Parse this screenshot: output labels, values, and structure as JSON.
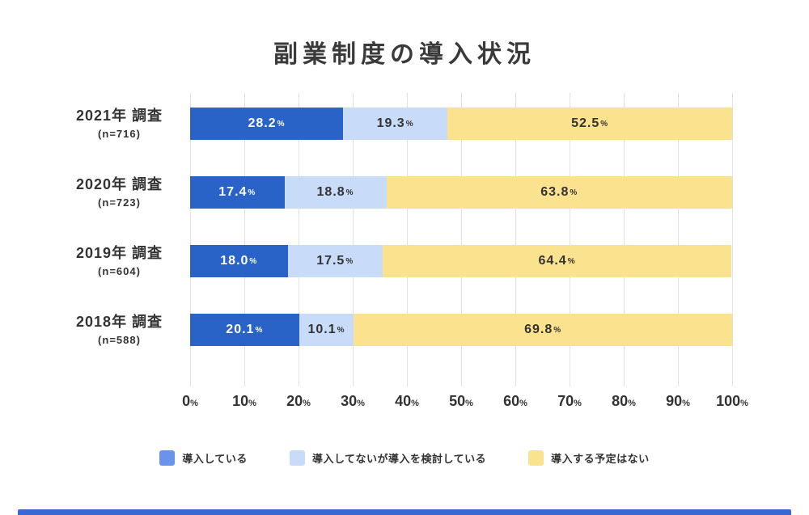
{
  "title": "副業制度の導入状況",
  "chart_data": {
    "type": "bar",
    "orientation": "horizontal",
    "stacked": true,
    "title": "副業制度の導入状況",
    "categories": [
      "2021年 調査",
      "2020年 調査",
      "2019年 調査",
      "2018年 調査"
    ],
    "category_sublabels": [
      "(n=716)",
      "(n=723)",
      "(n=604)",
      "(n=588)"
    ],
    "series": [
      {
        "name": "導入している",
        "color": "#2a63c8",
        "text_color": "#ffffff",
        "values": [
          28.2,
          17.4,
          18.0,
          20.1
        ]
      },
      {
        "name": "導入してないが導入を検討している",
        "color": "#c8dbf8",
        "text_color": "#333333",
        "values": [
          19.3,
          18.8,
          17.5,
          10.1
        ]
      },
      {
        "name": "導入する予定はない",
        "color": "#fae28e",
        "text_color": "#333333",
        "values": [
          52.5,
          63.8,
          64.4,
          69.8
        ]
      }
    ],
    "value_unit": "%",
    "x_ticks": [
      "0",
      "10",
      "20",
      "30",
      "40",
      "50",
      "60",
      "70",
      "80",
      "90",
      "100"
    ],
    "x_tick_unit": "%",
    "xlim": [
      0,
      100
    ],
    "grid": true,
    "legend_position": "bottom"
  },
  "legend": [
    {
      "label": "導入している",
      "swatch_color": "#6a94ec"
    },
    {
      "label": "導入してないが導入を検討している",
      "swatch_color": "#c8dbf8"
    },
    {
      "label": "導入する予定はない",
      "swatch_color": "#fae28e"
    }
  ],
  "colors": {
    "title_text": "#3a3a3a",
    "label_text": "#333333",
    "gridline": "#e1e1e1",
    "footer_bar": "#3a68d2",
    "background": "#ffffff"
  }
}
